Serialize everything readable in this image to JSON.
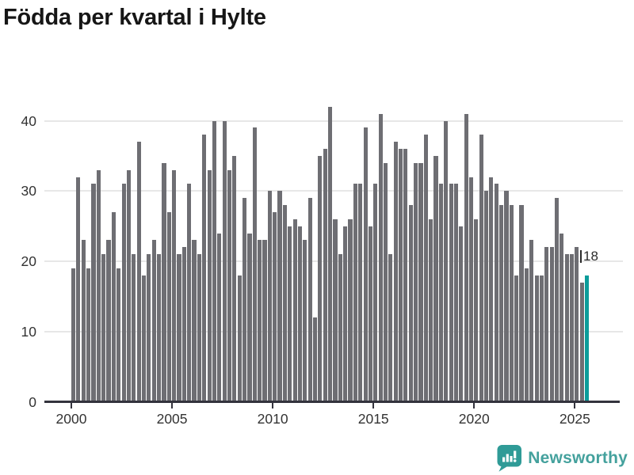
{
  "title": "Födda per kvartal i Hylte",
  "chart_data": {
    "type": "bar",
    "frequency": "quarterly",
    "start_period": "2000-Q1",
    "end_period": "2025-Q3",
    "values": [
      19,
      32,
      23,
      19,
      31,
      33,
      21,
      23,
      27,
      19,
      31,
      33,
      21,
      37,
      18,
      21,
      23,
      21,
      34,
      27,
      33,
      21,
      22,
      31,
      23,
      21,
      38,
      33,
      40,
      24,
      40,
      33,
      35,
      18,
      29,
      24,
      39,
      23,
      23,
      30,
      27,
      30,
      28,
      25,
      26,
      25,
      23,
      29,
      12,
      35,
      36,
      42,
      26,
      21,
      25,
      26,
      31,
      31,
      39,
      25,
      31,
      41,
      34,
      21,
      37,
      36,
      36,
      28,
      34,
      34,
      38,
      26,
      35,
      31,
      40,
      31,
      31,
      25,
      41,
      32,
      26,
      38,
      30,
      32,
      31,
      28,
      30,
      28,
      18,
      28,
      19,
      23,
      18,
      18,
      22,
      22,
      29,
      24,
      21,
      21,
      22,
      17,
      18
    ],
    "yticks": [
      0,
      10,
      20,
      30,
      40
    ],
    "xticks": [
      2000,
      2005,
      2010,
      2015,
      2020,
      2025
    ],
    "ylim": [
      0,
      44
    ],
    "grid": "horizontal",
    "legend": "none",
    "bar_color": "#6E6E73",
    "highlight_color": "#0B9C9A",
    "highlight": {
      "index": 102,
      "period": "2025-Q3",
      "value": 18
    },
    "annotation": {
      "text": "18"
    }
  },
  "logo": {
    "text": "Newsworthy",
    "brand_color": "#44A19D",
    "icon_color": "#2F9B97"
  }
}
